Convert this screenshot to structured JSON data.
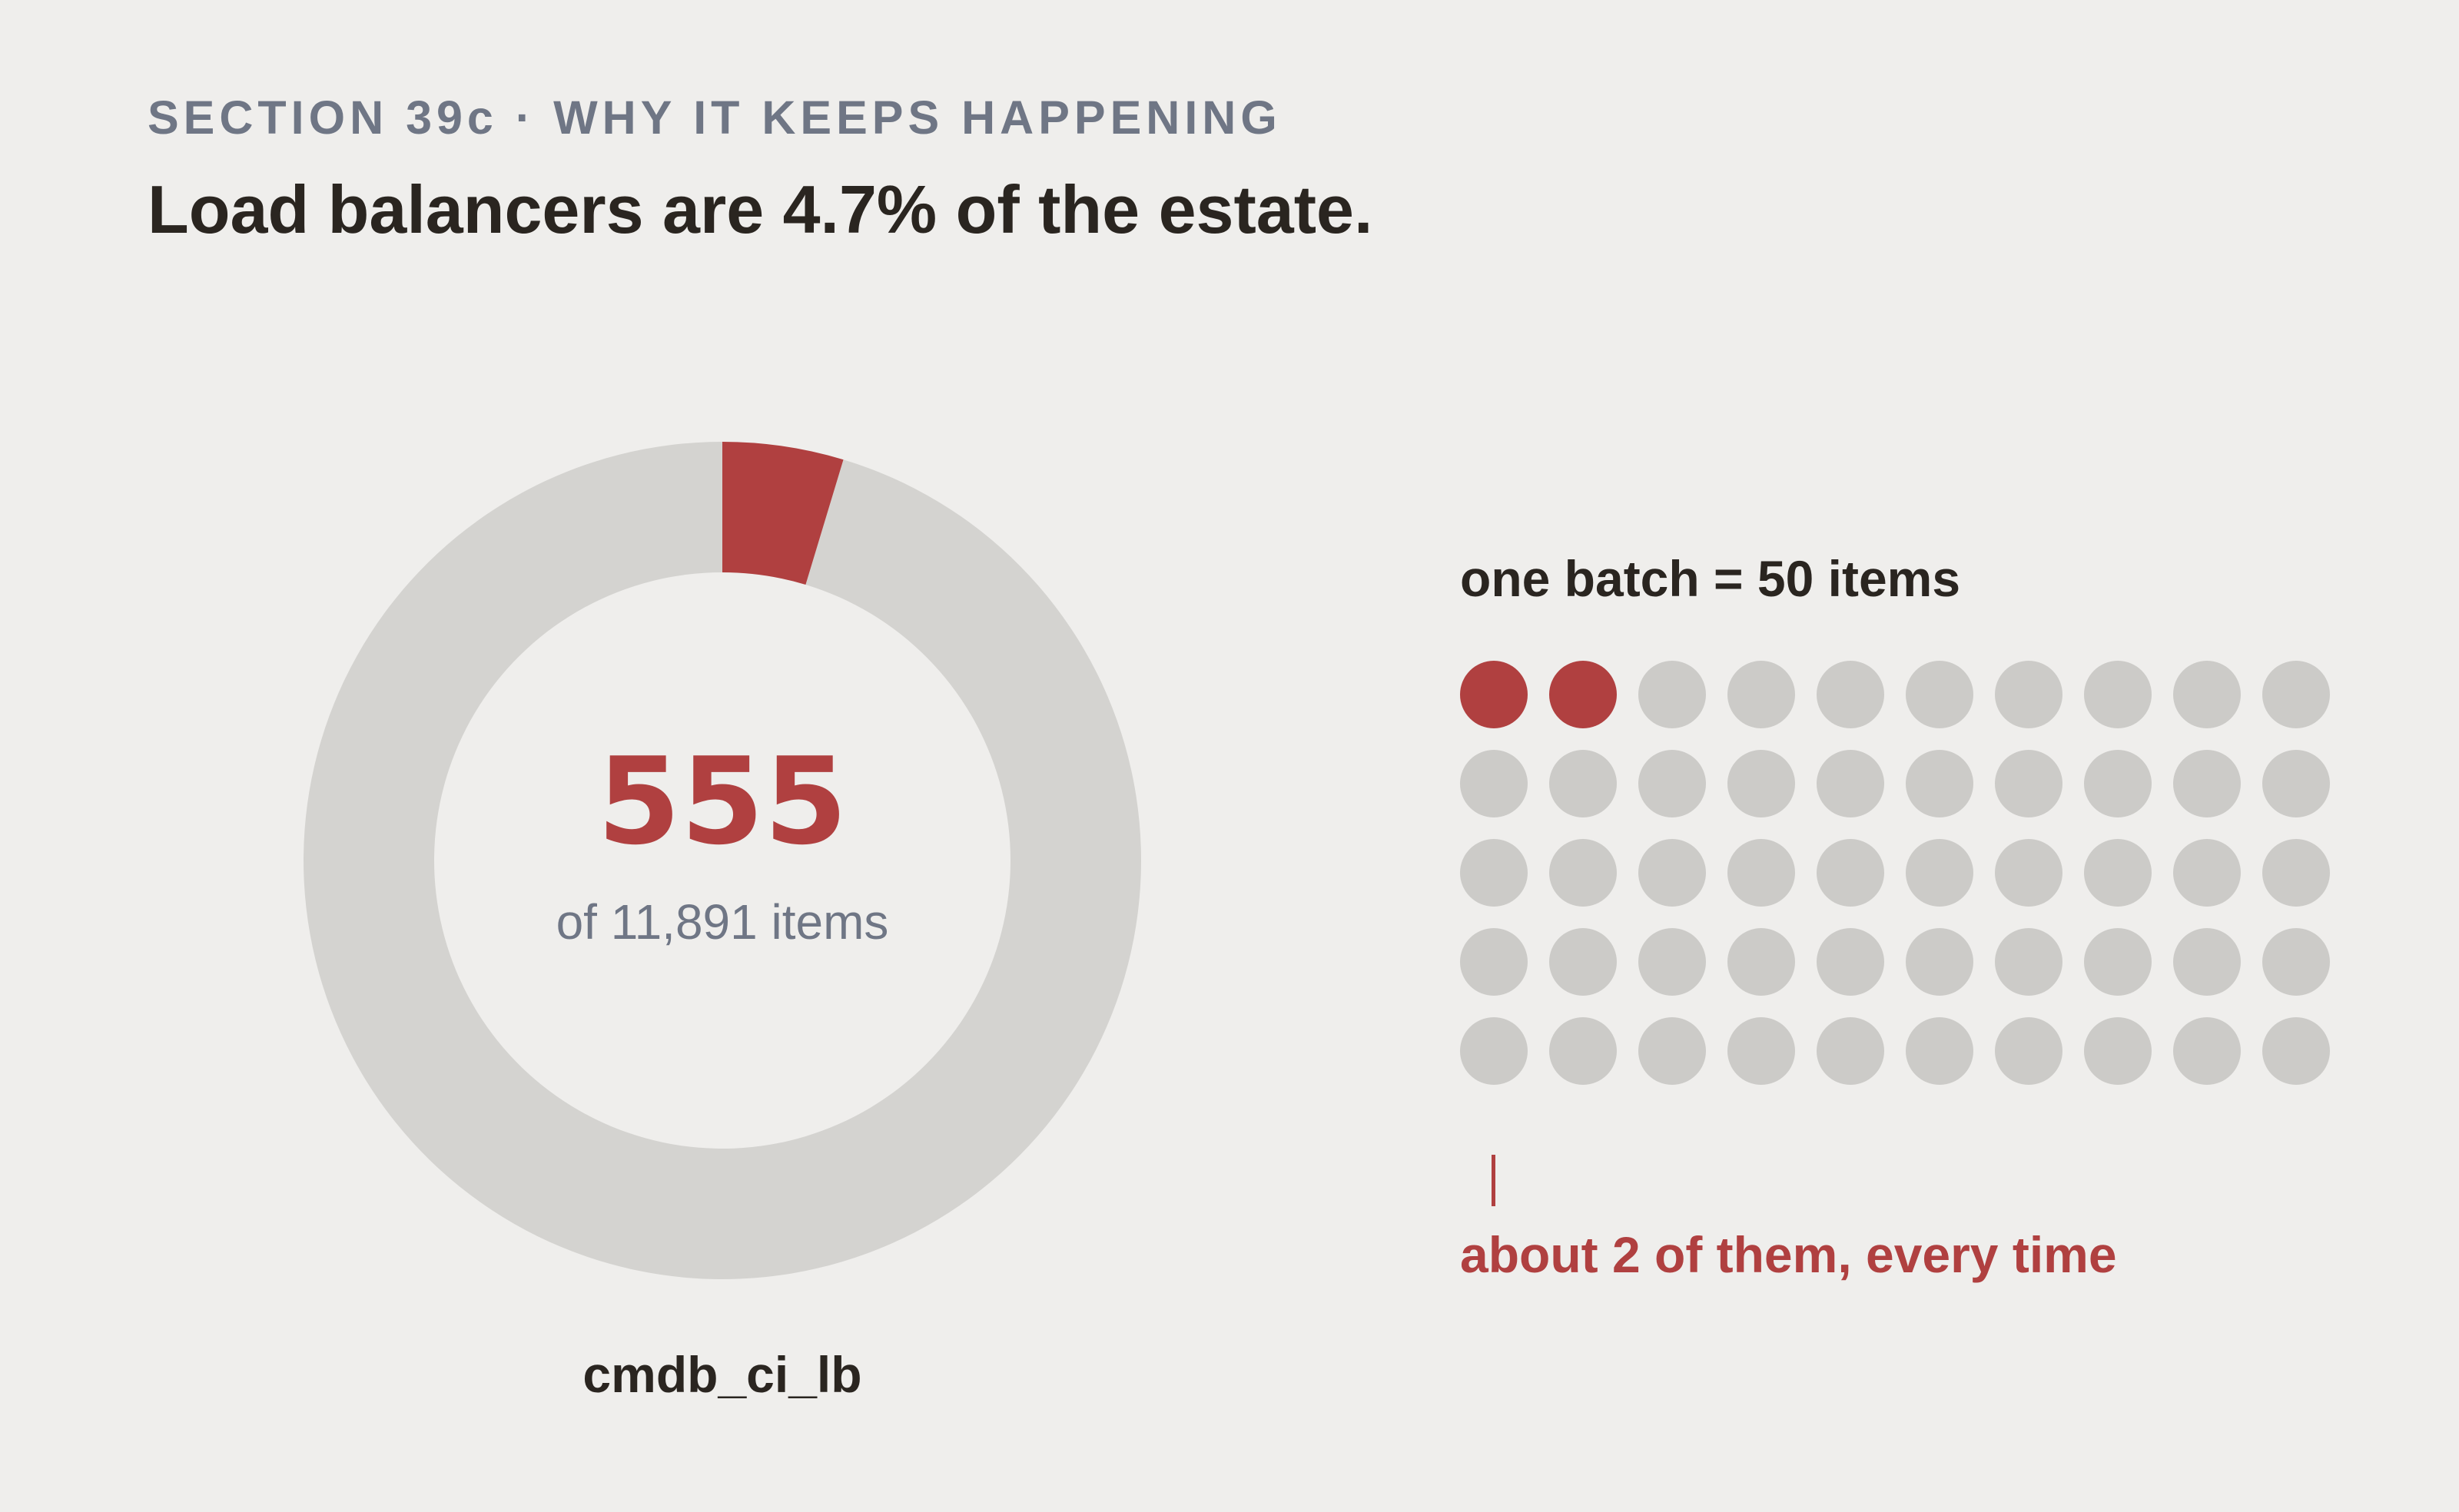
{
  "header": {
    "eyebrow": "SECTION 39c · WHY IT KEEPS HAPPENING",
    "headline": "Load balancers are 4.7% of the estate."
  },
  "colors": {
    "accent": "#b04040",
    "muted": "#d4d3d0",
    "dot_muted": "#cccbc8",
    "background": "#efeeec",
    "text_dark": "#2a2520",
    "text_gray": "#6f7685"
  },
  "chart_data": [
    {
      "type": "pie",
      "style": "donut",
      "value": 555,
      "total": 11891,
      "center_value": "555",
      "center_label": "of 11,891 items",
      "label": "cmdb_ci_lb"
    },
    {
      "type": "waffle",
      "title": "one batch = 50 items",
      "rows": 5,
      "columns": 10,
      "total": 50,
      "highlighted": 2,
      "annotation": "about 2 of them, every time"
    }
  ]
}
